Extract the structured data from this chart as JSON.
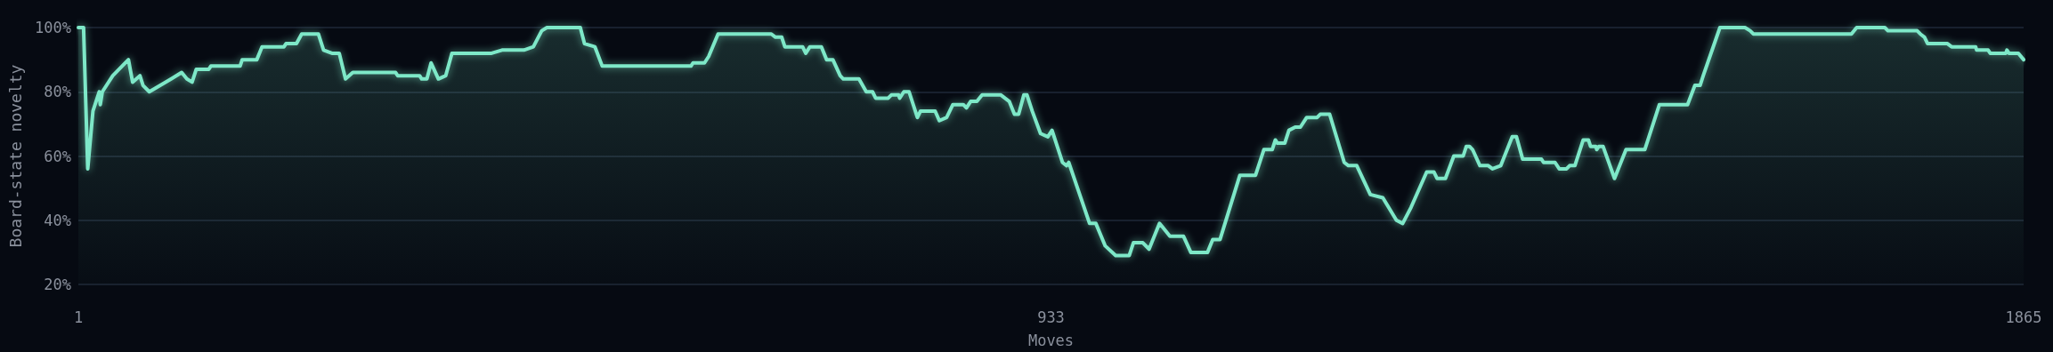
{
  "chart_data": {
    "type": "area",
    "xlabel": "Moves",
    "ylabel": "Board-state novelty",
    "xlim": [
      1,
      1865
    ],
    "xticks": [
      1,
      933,
      1865
    ],
    "ylim": [
      20,
      100
    ],
    "yticks": [
      {
        "value": 20,
        "label": "20%"
      },
      {
        "value": 40,
        "label": "40%"
      },
      {
        "value": 60,
        "label": "60%"
      },
      {
        "value": 80,
        "label": "80%"
      },
      {
        "value": 100,
        "label": "100%"
      }
    ],
    "grid": "y",
    "marker": "none",
    "line_style": "solid",
    "series": [
      {
        "color": "#7ee8c8",
        "x": [
          1,
          6,
          10,
          15,
          21,
          22,
          24,
          34,
          49,
          53,
          60,
          63,
          69,
          90,
          100,
          105,
          110,
          114,
          126,
          128,
          156,
          158,
          172,
          177,
          198,
          200,
          210,
          215,
          231,
          236,
          244,
          251,
          257,
          264,
          305,
          307,
          328,
          330,
          335,
          339,
          346,
          353,
          359,
          397,
          407,
          428,
          437,
          445,
          450,
          482,
          486,
          496,
          503,
          588,
          590,
          601,
          605,
          614,
          665,
          669,
          675,
          678,
          695,
          698,
          702,
          713,
          718,
          724,
          731,
          734,
          749,
          756,
          762,
          765,
          777,
          780,
          787,
          788,
          792,
          797,
          805,
          808,
          822,
          826,
          833,
          839,
          849,
          852,
          856,
          862,
          867,
          885,
          893,
          898,
          902,
          907,
          910,
          915,
          923,
          930,
          934,
          944,
          948,
          950,
          970,
          976,
          985,
          995,
          1008,
          1012,
          1021,
          1027,
          1037,
          1047,
          1060,
          1067,
          1083,
          1088,
          1095,
          1114,
          1129,
          1137,
          1145,
          1148,
          1150,
          1157,
          1161,
          1167,
          1172,
          1178,
          1188,
          1191,
          1200,
          1214,
          1218,
          1226,
          1239,
          1251,
          1264,
          1270,
          1278,
          1293,
          1300,
          1303,
          1311,
          1319,
          1328,
          1331,
          1334,
          1337,
          1344,
          1352,
          1356,
          1364,
          1375,
          1379,
          1385,
          1403,
          1405,
          1416,
          1420,
          1427,
          1430,
          1435,
          1443,
          1448,
          1450,
          1455,
          1456,
          1458,
          1462,
          1473,
          1484,
          1502,
          1516,
          1543,
          1550,
          1555,
          1558,
          1574,
          1598,
          1603,
          1606,
          1700,
          1705,
          1732,
          1735,
          1763,
          1766,
          1770,
          1773,
          1792,
          1796,
          1819,
          1820,
          1831,
          1833,
          1848,
          1849,
          1851,
          1860,
          1865
        ],
        "values": [
          100,
          100,
          56,
          74,
          80,
          76,
          80,
          85,
          90,
          83,
          85,
          82,
          80,
          84,
          86,
          84,
          83,
          87,
          87,
          88,
          88,
          90,
          90,
          94,
          94,
          95,
          95,
          98,
          98,
          93,
          92,
          92,
          84,
          86,
          86,
          85,
          85,
          84,
          84,
          89,
          84,
          85,
          92,
          92,
          93,
          93,
          94,
          99,
          100,
          100,
          95,
          94,
          88,
          88,
          89,
          89,
          91,
          98,
          98,
          97,
          97,
          94,
          94,
          92,
          94,
          94,
          90,
          90,
          85,
          84,
          84,
          80,
          80,
          78,
          78,
          79,
          79,
          78,
          80,
          80,
          72,
          74,
          74,
          71,
          72,
          76,
          76,
          75,
          77,
          77,
          79,
          79,
          77,
          73,
          73,
          79,
          79,
          74,
          67,
          66,
          68,
          58,
          57,
          58,
          39,
          39,
          32,
          29,
          29,
          33,
          33,
          31,
          39,
          35,
          35,
          30,
          30,
          34,
          34,
          54,
          54,
          62,
          62,
          65,
          64,
          64,
          68,
          69,
          69,
          72,
          72,
          73,
          73,
          58,
          57,
          57,
          48,
          47,
          40,
          39,
          44,
          55,
          55,
          53,
          53,
          60,
          60,
          63,
          63,
          62,
          57,
          57,
          56,
          57,
          66,
          66,
          59,
          59,
          58,
          58,
          56,
          56,
          57,
          57,
          65,
          65,
          63,
          63,
          62,
          63,
          63,
          53,
          62,
          62,
          76,
          76,
          82,
          82,
          85,
          100,
          100,
          99,
          98,
          98,
          100,
          100,
          99,
          99,
          98,
          97,
          95,
          95,
          94,
          94,
          93,
          93,
          92,
          92,
          93,
          92,
          92,
          90
        ]
      }
    ]
  }
}
